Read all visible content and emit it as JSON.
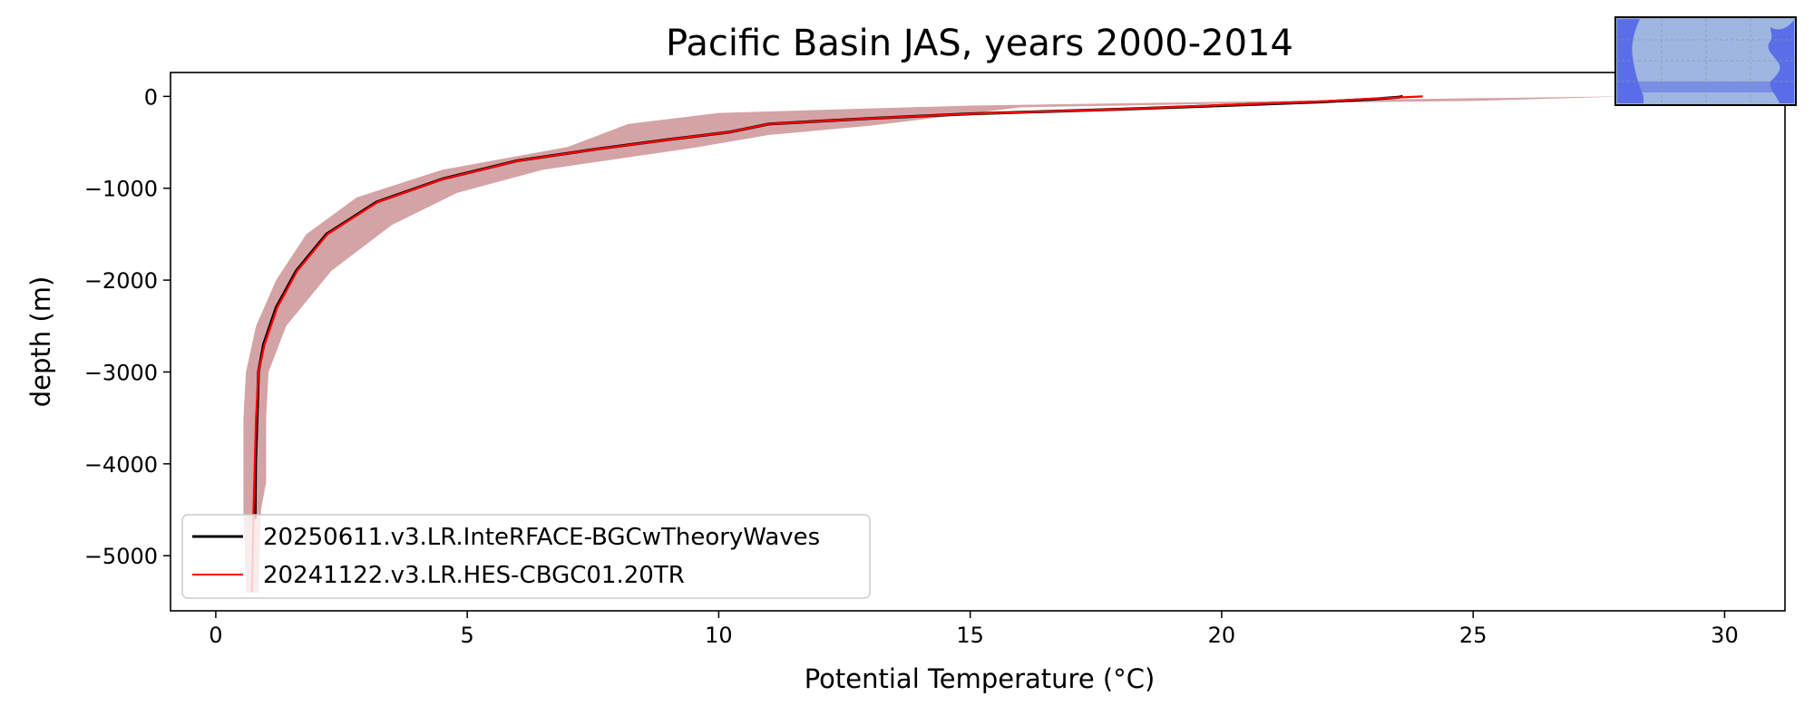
{
  "chart_data": {
    "type": "line",
    "title": "Pacific Basin JAS, years 2000-2014",
    "xlabel": "Potential Temperature (°C)",
    "ylabel": "depth (m)",
    "xlim": [
      -0.9,
      31.2
    ],
    "ylim": [
      -5600,
      260
    ],
    "x_ticks": [
      0,
      5,
      10,
      15,
      20,
      25,
      30
    ],
    "x_tick_labels": [
      "0",
      "5",
      "10",
      "15",
      "20",
      "25",
      "30"
    ],
    "y_ticks": [
      0,
      -1000,
      -2000,
      -3000,
      -4000,
      -5000
    ],
    "y_tick_labels": [
      "0",
      "−1000",
      "−2000",
      "−3000",
      "−4000",
      "−5000"
    ],
    "grid": false,
    "legend_position": "lower-left",
    "inset": "world-map-pacific-basin-highlight",
    "spread_band": {
      "color": "#d4a3a5",
      "lower": [
        {
          "x": 0.6,
          "y": -5400
        },
        {
          "x": 0.55,
          "y": -4500
        },
        {
          "x": 0.55,
          "y": -3500
        },
        {
          "x": 0.6,
          "y": -3000
        },
        {
          "x": 0.8,
          "y": -2500
        },
        {
          "x": 1.2,
          "y": -2000
        },
        {
          "x": 1.8,
          "y": -1500
        },
        {
          "x": 2.8,
          "y": -1100
        },
        {
          "x": 4.5,
          "y": -800
        },
        {
          "x": 7.0,
          "y": -550
        },
        {
          "x": 8.2,
          "y": -300
        },
        {
          "x": 10.0,
          "y": -180
        },
        {
          "x": 15.0,
          "y": -100
        },
        {
          "x": 20.0,
          "y": -60
        },
        {
          "x": 25.0,
          "y": -20
        },
        {
          "x": 28.0,
          "y": 0
        }
      ],
      "upper": [
        {
          "x": 28.0,
          "y": 0
        },
        {
          "x": 25.0,
          "y": -50
        },
        {
          "x": 20.0,
          "y": -80
        },
        {
          "x": 16.0,
          "y": -120
        },
        {
          "x": 13.0,
          "y": -320
        },
        {
          "x": 11.0,
          "y": -420
        },
        {
          "x": 9.5,
          "y": -560
        },
        {
          "x": 6.5,
          "y": -800
        },
        {
          "x": 4.8,
          "y": -1050
        },
        {
          "x": 3.5,
          "y": -1400
        },
        {
          "x": 2.3,
          "y": -1900
        },
        {
          "x": 1.4,
          "y": -2500
        },
        {
          "x": 1.05,
          "y": -3000
        },
        {
          "x": 1.0,
          "y": -3500
        },
        {
          "x": 1.0,
          "y": -4200
        },
        {
          "x": 0.9,
          "y": -4500
        },
        {
          "x": 0.85,
          "y": -5400
        }
      ]
    },
    "series": [
      {
        "name": "20250611.v3.LR.InteRFACE-BGCwTheoryWaves",
        "color": "#000000",
        "points": [
          {
            "x": 0.78,
            "y": -4600
          },
          {
            "x": 0.79,
            "y": -4000
          },
          {
            "x": 0.82,
            "y": -3500
          },
          {
            "x": 0.85,
            "y": -3000
          },
          {
            "x": 0.95,
            "y": -2700
          },
          {
            "x": 1.2,
            "y": -2300
          },
          {
            "x": 1.6,
            "y": -1900
          },
          {
            "x": 2.2,
            "y": -1500
          },
          {
            "x": 3.2,
            "y": -1150
          },
          {
            "x": 4.5,
            "y": -900
          },
          {
            "x": 6.0,
            "y": -700
          },
          {
            "x": 7.5,
            "y": -580
          },
          {
            "x": 9.0,
            "y": -470
          },
          {
            "x": 10.2,
            "y": -390
          },
          {
            "x": 11.0,
            "y": -300
          },
          {
            "x": 13.0,
            "y": -240
          },
          {
            "x": 15.0,
            "y": -190
          },
          {
            "x": 18.0,
            "y": -140
          },
          {
            "x": 20.0,
            "y": -100
          },
          {
            "x": 22.0,
            "y": -60
          },
          {
            "x": 23.0,
            "y": -30
          },
          {
            "x": 23.5,
            "y": -10
          },
          {
            "x": 23.6,
            "y": 0
          }
        ]
      },
      {
        "name": "20241122.v3.LR.HES-CBGC01.20TR",
        "color": "#ff0000",
        "points": [
          {
            "x": 0.72,
            "y": -5400
          },
          {
            "x": 0.75,
            "y": -4500
          },
          {
            "x": 0.8,
            "y": -3500
          },
          {
            "x": 0.85,
            "y": -3000
          },
          {
            "x": 0.97,
            "y": -2700
          },
          {
            "x": 1.22,
            "y": -2300
          },
          {
            "x": 1.62,
            "y": -1900
          },
          {
            "x": 2.22,
            "y": -1500
          },
          {
            "x": 3.22,
            "y": -1150
          },
          {
            "x": 4.52,
            "y": -900
          },
          {
            "x": 6.02,
            "y": -700
          },
          {
            "x": 7.52,
            "y": -580
          },
          {
            "x": 9.02,
            "y": -470
          },
          {
            "x": 10.2,
            "y": -390
          },
          {
            "x": 11.0,
            "y": -300
          },
          {
            "x": 13.0,
            "y": -240
          },
          {
            "x": 15.0,
            "y": -190
          },
          {
            "x": 18.0,
            "y": -140
          },
          {
            "x": 20.0,
            "y": -95
          },
          {
            "x": 22.0,
            "y": -55
          },
          {
            "x": 23.0,
            "y": -25
          },
          {
            "x": 23.6,
            "y": -10
          },
          {
            "x": 24.0,
            "y": 0
          }
        ]
      }
    ]
  }
}
